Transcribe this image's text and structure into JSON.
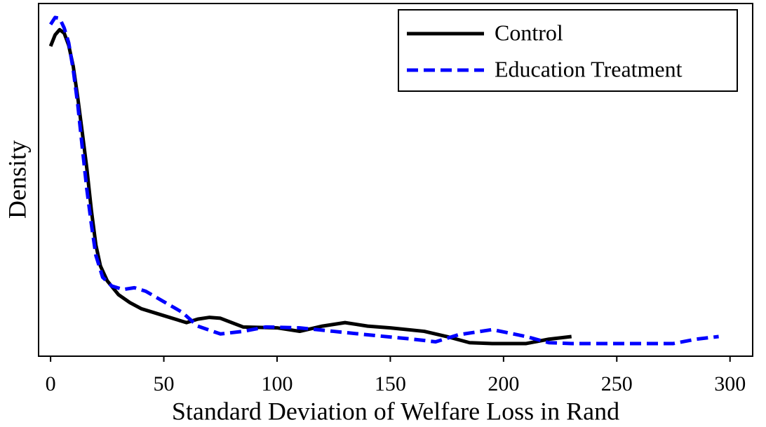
{
  "chart_data": {
    "type": "line",
    "x_label": "Standard Deviation of Welfare Loss in Rand",
    "y_label": "Density",
    "xlim": [
      -5.3,
      310
    ],
    "xticks": [
      0,
      50,
      100,
      150,
      200,
      250,
      300
    ],
    "ylim": [
      -0.00145,
      0.039
    ],
    "legend": "upper right",
    "series": [
      {
        "name": "Control",
        "color": "#000000",
        "style": "solid",
        "x": [
          0,
          2,
          4,
          6,
          8,
          10,
          12,
          14,
          16,
          18,
          20,
          22,
          25,
          30,
          35,
          40,
          50,
          60,
          65,
          70,
          75,
          85,
          100,
          110,
          120,
          130,
          140,
          150,
          165,
          175,
          185,
          195,
          210,
          220,
          230
        ],
        "values": [
          0.0341,
          0.0354,
          0.036,
          0.0356,
          0.0342,
          0.0318,
          0.0282,
          0.0242,
          0.0201,
          0.0153,
          0.0113,
          0.0089,
          0.0072,
          0.0056,
          0.0047,
          0.004,
          0.0032,
          0.0024,
          0.0028,
          0.003,
          0.0029,
          0.0019,
          0.0018,
          0.0014,
          0.002,
          0.0024,
          0.002,
          0.0018,
          0.0014,
          0.0008,
          0.0001,
          0,
          0,
          0.0005,
          0.0008
        ]
      },
      {
        "name": "Education Treatment",
        "color": "#0000ff",
        "style": "dashed",
        "x": [
          0,
          2,
          4,
          6,
          8,
          10,
          12,
          14,
          16,
          18,
          20,
          23,
          27,
          32,
          37,
          42,
          50,
          58,
          65,
          75,
          85,
          95,
          110,
          125,
          140,
          160,
          170,
          180,
          195,
          210,
          220,
          230,
          275,
          285,
          295
        ],
        "values": [
          0.0366,
          0.0374,
          0.0373,
          0.0362,
          0.0345,
          0.0314,
          0.0274,
          0.0225,
          0.0177,
          0.0137,
          0.0101,
          0.0076,
          0.0066,
          0.0062,
          0.0064,
          0.006,
          0.0048,
          0.0036,
          0.002,
          0.0011,
          0.0014,
          0.0019,
          0.0018,
          0.0014,
          0.001,
          0.0005,
          0.0002,
          0.001,
          0.0016,
          0.0008,
          0.0001,
          0,
          0,
          0.0005,
          0.0008
        ]
      }
    ]
  }
}
